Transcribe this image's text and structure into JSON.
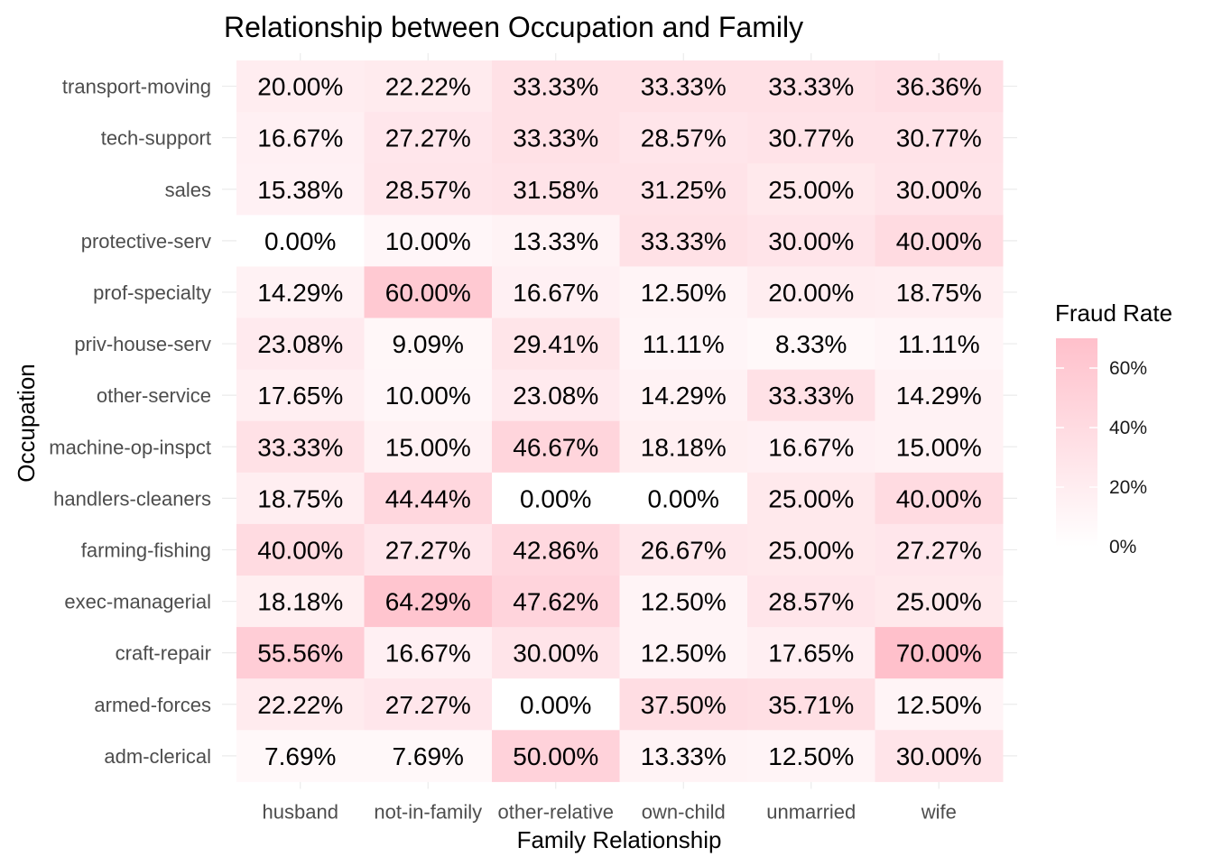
{
  "chart_data": {
    "type": "heatmap",
    "title": "Relationship between Occupation and Family",
    "xlabel": "Family Relationship",
    "ylabel": "Occupation",
    "x_categories": [
      "husband",
      "not-in-family",
      "other-relative",
      "own-child",
      "unmarried",
      "wife"
    ],
    "y_categories": [
      "transport-moving",
      "tech-support",
      "sales",
      "protective-serv",
      "prof-specialty",
      "priv-house-serv",
      "other-service",
      "machine-op-inspct",
      "handlers-cleaners",
      "farming-fishing",
      "exec-managerial",
      "craft-repair",
      "armed-forces",
      "adm-clerical"
    ],
    "values": [
      [
        20.0,
        22.22,
        33.33,
        33.33,
        33.33,
        36.36
      ],
      [
        16.67,
        27.27,
        33.33,
        28.57,
        30.77,
        30.77
      ],
      [
        15.38,
        28.57,
        31.58,
        31.25,
        25.0,
        30.0
      ],
      [
        0.0,
        10.0,
        13.33,
        33.33,
        30.0,
        40.0
      ],
      [
        14.29,
        60.0,
        16.67,
        12.5,
        20.0,
        18.75
      ],
      [
        23.08,
        9.09,
        29.41,
        11.11,
        8.33,
        11.11
      ],
      [
        17.65,
        10.0,
        23.08,
        14.29,
        33.33,
        14.29
      ],
      [
        33.33,
        15.0,
        46.67,
        18.18,
        16.67,
        15.0
      ],
      [
        18.75,
        44.44,
        0.0,
        0.0,
        25.0,
        40.0
      ],
      [
        40.0,
        27.27,
        42.86,
        26.67,
        25.0,
        27.27
      ],
      [
        18.18,
        64.29,
        47.62,
        12.5,
        28.57,
        25.0
      ],
      [
        55.56,
        16.67,
        30.0,
        12.5,
        17.65,
        70.0
      ],
      [
        22.22,
        27.27,
        0.0,
        37.5,
        35.71,
        12.5
      ],
      [
        7.69,
        7.69,
        50.0,
        13.33,
        12.5,
        30.0
      ]
    ],
    "cell_labels": [
      [
        "20.00%",
        "22.22%",
        "33.33%",
        "33.33%",
        "33.33%",
        "36.36%"
      ],
      [
        "16.67%",
        "27.27%",
        "33.33%",
        "28.57%",
        "30.77%",
        "30.77%"
      ],
      [
        "15.38%",
        "28.57%",
        "31.58%",
        "31.25%",
        "25.00%",
        "30.00%"
      ],
      [
        "0.00%",
        "10.00%",
        "13.33%",
        "33.33%",
        "30.00%",
        "40.00%"
      ],
      [
        "14.29%",
        "60.00%",
        "16.67%",
        "12.50%",
        "20.00%",
        "18.75%"
      ],
      [
        "23.08%",
        "9.09%",
        "29.41%",
        "11.11%",
        "8.33%",
        "11.11%"
      ],
      [
        "17.65%",
        "10.00%",
        "23.08%",
        "14.29%",
        "33.33%",
        "14.29%"
      ],
      [
        "33.33%",
        "15.00%",
        "46.67%",
        "18.18%",
        "16.67%",
        "15.00%"
      ],
      [
        "18.75%",
        "44.44%",
        "0.00%",
        "0.00%",
        "25.00%",
        "40.00%"
      ],
      [
        "40.00%",
        "27.27%",
        "42.86%",
        "26.67%",
        "25.00%",
        "27.27%"
      ],
      [
        "18.18%",
        "64.29%",
        "47.62%",
        "12.50%",
        "28.57%",
        "25.00%"
      ],
      [
        "55.56%",
        "16.67%",
        "30.00%",
        "12.50%",
        "17.65%",
        "70.00%"
      ],
      [
        "22.22%",
        "27.27%",
        "0.00%",
        "37.50%",
        "35.71%",
        "12.50%"
      ],
      [
        "7.69%",
        "7.69%",
        "50.00%",
        "13.33%",
        "12.50%",
        "30.00%"
      ]
    ],
    "legend": {
      "title": "Fraud Rate",
      "ticks": [
        0,
        20,
        40,
        60
      ],
      "tick_labels": [
        "0%",
        "20%",
        "40%",
        "60%"
      ],
      "range": [
        0,
        70
      ],
      "placement": "right"
    },
    "colors": {
      "low": "#ffffff",
      "high": "#ffc0cb"
    },
    "grid": true
  }
}
